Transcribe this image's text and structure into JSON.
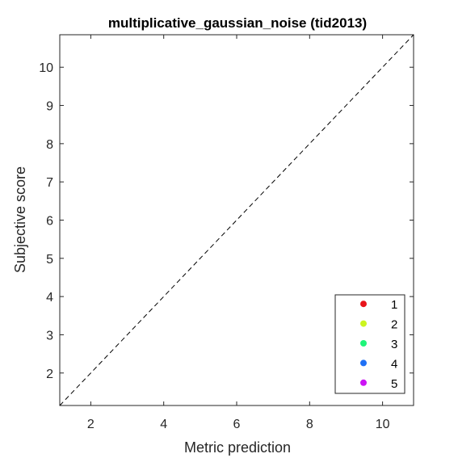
{
  "chart_data": {
    "type": "scatter",
    "title": "multiplicative_gaussian_noise (tid2013)",
    "xlabel": "Metric prediction",
    "ylabel": "Subjective score",
    "xlim": [
      1.15,
      10.85
    ],
    "ylim": [
      1.15,
      10.85
    ],
    "xticks": [
      2,
      4,
      6,
      8,
      10
    ],
    "yticks": [
      2,
      3,
      4,
      5,
      6,
      7,
      8,
      9,
      10
    ],
    "grid": false,
    "reference_line": "identity (dashed)",
    "legend_position": "bottom-right",
    "series": [
      {
        "name": "1",
        "color": "#e8141a",
        "x": [],
        "y": []
      },
      {
        "name": "2",
        "color": "#ccf51f",
        "x": [],
        "y": []
      },
      {
        "name": "3",
        "color": "#1ff57a",
        "x": [],
        "y": []
      },
      {
        "name": "4",
        "color": "#1f70f5",
        "x": [],
        "y": []
      },
      {
        "name": "5",
        "color": "#cc14f5",
        "x": [],
        "y": []
      }
    ]
  }
}
